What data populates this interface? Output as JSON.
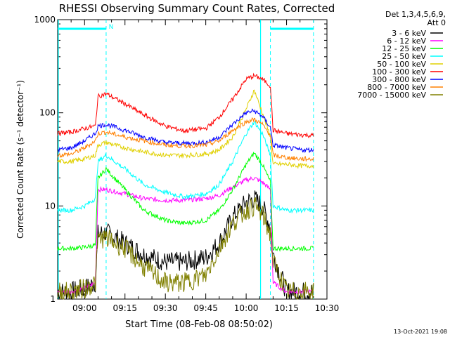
{
  "title": "RHESSI Observing Summary Count Rates, Corrected",
  "ylabel": "Corrected Count Rate (s⁻¹ detector⁻¹)",
  "xlabel": "Start Time (08-Feb-08 08:50:02)",
  "footer_date": "13-Oct-2021 19:08",
  "legend_header": [
    "Det 1,3,4,5,6,9,",
    "Att 0"
  ],
  "night_marker": "N",
  "colors": {
    "3-6": "#000000",
    "6-12": "#ff00ff",
    "12-25": "#00ff00",
    "25-50": "#00ffff",
    "50-100": "#e0d000",
    "100-300": "#ff0000",
    "300-800": "#0000ff",
    "800-7000": "#ff8000",
    "7000-15000": "#808000",
    "cyan": "#00ffff"
  },
  "chart_data": {
    "type": "line",
    "x_axis_time": true,
    "xlim": [
      "08:50",
      "10:30"
    ],
    "ylim": [
      1,
      1000
    ],
    "y_scale": "log",
    "x_ticks": [
      "09:00",
      "09:15",
      "09:30",
      "09:45",
      "10:00",
      "10:15",
      "10:30"
    ],
    "y_ticks": [
      "1",
      "10",
      "100",
      "1000"
    ],
    "x": [
      "08:50",
      "08:55",
      "09:00",
      "09:04",
      "09:05",
      "09:08",
      "09:15",
      "09:22",
      "09:30",
      "09:37",
      "09:45",
      "09:50",
      "09:55",
      "10:00",
      "10:03",
      "10:06",
      "10:09",
      "10:10",
      "10:15",
      "10:20",
      "10:25"
    ],
    "series": [
      {
        "name": "3 - 6 keV",
        "color_key": "3-6",
        "values": [
          1.2,
          1.2,
          1.3,
          1.5,
          5.0,
          5.2,
          4.0,
          3.0,
          2.5,
          2.5,
          2.8,
          4.0,
          7.5,
          11.0,
          12.0,
          10.0,
          6.0,
          3.0,
          1.2,
          1.2,
          1.2
        ]
      },
      {
        "name": "6 - 12 keV",
        "color_key": "6-12",
        "values": [
          1.2,
          1.2,
          1.3,
          1.5,
          15.0,
          15.0,
          13.5,
          12.0,
          11.5,
          11.5,
          12.0,
          13.0,
          16.0,
          19.0,
          20.0,
          18.0,
          15.0,
          1.5,
          1.2,
          1.2,
          1.2
        ]
      },
      {
        "name": "12 - 25 keV",
        "color_key": "12-25",
        "values": [
          3.5,
          3.5,
          3.6,
          3.8,
          20.0,
          25.0,
          15.0,
          9.0,
          7.0,
          6.5,
          7.0,
          9.0,
          15.0,
          28.0,
          37.0,
          28.0,
          18.0,
          3.5,
          3.5,
          3.5,
          3.5
        ]
      },
      {
        "name": "25 - 50 keV",
        "color_key": "25-50",
        "values": [
          9.0,
          9.0,
          10.0,
          12.0,
          30.0,
          35.0,
          25.0,
          17.0,
          14.0,
          12.5,
          13.5,
          17.0,
          30.0,
          60.0,
          80.0,
          60.0,
          35.0,
          10.0,
          9.0,
          9.0,
          9.0
        ]
      },
      {
        "name": "50 - 100 keV",
        "color_key": "50-100",
        "values": [
          30.0,
          30.0,
          32.0,
          35.0,
          45.0,
          48.0,
          42.0,
          38.0,
          35.0,
          35.0,
          36.0,
          40.0,
          55.0,
          110.0,
          175.0,
          100.0,
          55.0,
          28.0,
          28.0,
          27.0,
          27.0
        ]
      },
      {
        "name": "100 - 300 keV",
        "color_key": "100-300",
        "values": [
          60.0,
          62.0,
          68.0,
          72.0,
          150.0,
          160.0,
          125.0,
          95.0,
          72.0,
          64.0,
          68.0,
          90.0,
          140.0,
          230.0,
          250.0,
          230.0,
          195.0,
          65.0,
          60.0,
          58.0,
          57.0
        ]
      },
      {
        "name": "300 - 800 keV",
        "color_key": "300-800",
        "values": [
          40.0,
          42.0,
          50.0,
          60.0,
          72.0,
          75.0,
          65.0,
          55.0,
          48.0,
          47.0,
          48.0,
          55.0,
          75.0,
          100.0,
          105.0,
          92.0,
          70.0,
          45.0,
          42.0,
          40.0,
          40.0
        ]
      },
      {
        "name": "800 - 7000 keV",
        "color_key": "800-7000",
        "values": [
          35.0,
          36.0,
          42.0,
          50.0,
          60.0,
          62.0,
          55.0,
          50.0,
          45.0,
          44.0,
          45.0,
          50.0,
          65.0,
          80.0,
          85.0,
          75.0,
          58.0,
          35.0,
          33.0,
          32.0,
          32.0
        ]
      },
      {
        "name": "7000 - 15000 keV",
        "color_key": "7000-15000",
        "values": [
          1.2,
          1.2,
          1.3,
          1.5,
          4.5,
          4.5,
          3.5,
          2.2,
          1.5,
          1.5,
          1.8,
          3.5,
          6.5,
          9.0,
          10.0,
          8.0,
          5.0,
          2.5,
          1.2,
          1.2,
          1.2
        ]
      }
    ],
    "saa_flag_lines": [
      [
        "08:50",
        "09:08"
      ],
      [
        "10:09",
        "10:25"
      ]
    ],
    "markers": [
      "09:08",
      "10:09",
      "10:25"
    ],
    "grid": false,
    "legend_position": "right"
  }
}
